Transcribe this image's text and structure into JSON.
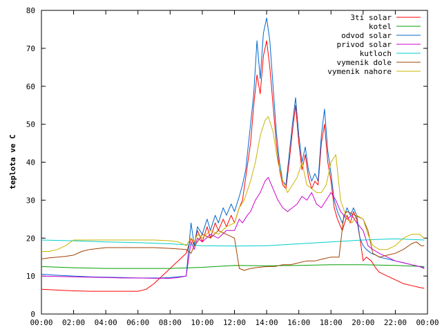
{
  "chart_data": {
    "type": "line",
    "title": "",
    "xlabel": "",
    "ylabel": "teplota ve C",
    "xlim": [
      0,
      24
    ],
    "ylim": [
      0,
      80
    ],
    "x_ticks": [
      {
        "value": 0,
        "label": "00:00"
      },
      {
        "value": 2,
        "label": "02:00"
      },
      {
        "value": 4,
        "label": "04:00"
      },
      {
        "value": 6,
        "label": "06:00"
      },
      {
        "value": 8,
        "label": "08:00"
      },
      {
        "value": 10,
        "label": "10:00"
      },
      {
        "value": 12,
        "label": "12:00"
      },
      {
        "value": 14,
        "label": "14:00"
      },
      {
        "value": 16,
        "label": "16:00"
      },
      {
        "value": 18,
        "label": "18:00"
      },
      {
        "value": 20,
        "label": "20:00"
      },
      {
        "value": 22,
        "label": "22:00"
      },
      {
        "value": 24,
        "label": "00:00"
      }
    ],
    "y_ticks": [
      {
        "value": 0,
        "label": "0"
      },
      {
        "value": 10,
        "label": "10"
      },
      {
        "value": 20,
        "label": "20"
      },
      {
        "value": 30,
        "label": "30"
      },
      {
        "value": 40,
        "label": "40"
      },
      {
        "value": 50,
        "label": "50"
      },
      {
        "value": 60,
        "label": "60"
      },
      {
        "value": 70,
        "label": "70"
      },
      {
        "value": 80,
        "label": "80"
      }
    ],
    "grid": false,
    "legend_position": "top-right",
    "series": [
      {
        "name": "3ti solar",
        "color": "#ff0000",
        "x": [
          0,
          1,
          2,
          3,
          4,
          5,
          6,
          6.5,
          7,
          7.5,
          8,
          8.5,
          9,
          9.3,
          9.5,
          9.7,
          10,
          10.3,
          10.5,
          10.8,
          11,
          11.3,
          11.5,
          11.8,
          12,
          12.3,
          12.5,
          12.7,
          13,
          13.2,
          13.4,
          13.6,
          13.8,
          14,
          14.2,
          14.4,
          14.6,
          14.8,
          15,
          15.2,
          15.4,
          15.6,
          15.8,
          16,
          16.2,
          16.4,
          16.6,
          16.8,
          17,
          17.2,
          17.4,
          17.6,
          17.8,
          18,
          18.2,
          18.4,
          18.7,
          19,
          19.2,
          19.4,
          19.6,
          19.8,
          20,
          20.2,
          20.5,
          20.8,
          21,
          21.5,
          22,
          22.5,
          23,
          23.5,
          23.8
        ],
        "y": [
          6.5,
          6.3,
          6.1,
          6.0,
          6.0,
          6.0,
          6.0,
          6.5,
          8,
          10,
          12,
          14,
          16,
          20,
          18,
          22,
          19,
          23,
          20,
          24,
          22,
          25,
          23,
          26,
          24,
          28,
          30,
          36,
          45,
          55,
          63,
          58,
          68,
          72,
          65,
          55,
          45,
          38,
          34,
          33,
          40,
          48,
          55,
          45,
          38,
          42,
          36,
          33,
          35,
          34,
          45,
          50,
          40,
          35,
          28,
          25,
          22,
          26,
          24,
          27,
          25,
          20,
          14,
          15,
          14,
          12,
          11,
          10,
          9,
          8,
          7.5,
          7,
          6.8
        ]
      },
      {
        "name": "kotel",
        "color": "#00a000",
        "x": [
          0,
          2,
          4,
          6,
          8,
          10,
          12,
          14,
          16,
          18,
          20,
          22,
          23.8
        ],
        "y": [
          12.5,
          12.2,
          12.0,
          12.0,
          12.0,
          12.3,
          12.8,
          12.7,
          12.8,
          13.0,
          13.0,
          12.8,
          12.5
        ]
      },
      {
        "name": "odvod solar",
        "color": "#0066cc",
        "x": [
          0,
          1,
          2,
          3,
          4,
          5,
          6,
          6.5,
          7,
          7.5,
          8,
          8.5,
          9,
          9.3,
          9.5,
          9.7,
          10,
          10.3,
          10.5,
          10.8,
          11,
          11.3,
          11.5,
          11.8,
          12,
          12.3,
          12.5,
          12.7,
          13,
          13.2,
          13.4,
          13.6,
          13.8,
          14,
          14.2,
          14.4,
          14.6,
          14.8,
          15,
          15.2,
          15.4,
          15.6,
          15.8,
          16,
          16.2,
          16.4,
          16.6,
          16.8,
          17,
          17.2,
          17.4,
          17.6,
          17.8,
          18,
          18.2,
          18.4,
          18.7,
          19,
          19.2,
          19.4,
          19.6,
          19.8,
          20,
          20.2,
          20.5,
          20.8,
          21,
          21.5,
          22,
          22.5,
          23,
          23.5,
          23.8
        ],
        "y": [
          10.5,
          10.2,
          10.0,
          9.8,
          9.7,
          9.6,
          9.5,
          9.5,
          9.5,
          9.5,
          9.6,
          9.8,
          10,
          24,
          18,
          23,
          21,
          25,
          22,
          26,
          24,
          28,
          26,
          29,
          27,
          31,
          34,
          38,
          50,
          58,
          72,
          62,
          74,
          78,
          72,
          60,
          48,
          40,
          35,
          34,
          42,
          50,
          57,
          47,
          40,
          44,
          38,
          35,
          37,
          35,
          47,
          54,
          43,
          37,
          30,
          27,
          24,
          28,
          26,
          28,
          26,
          20,
          18,
          17,
          16,
          15.5,
          15,
          14.5,
          14,
          13.5,
          13,
          12.5,
          12.2
        ]
      },
      {
        "name": "privod solar",
        "color": "#cc00cc",
        "x": [
          0,
          1,
          2,
          3,
          4,
          5,
          6,
          7,
          8,
          8.5,
          9,
          9.3,
          9.5,
          9.7,
          10,
          10.5,
          11,
          11.5,
          12,
          12.3,
          12.5,
          12.8,
          13,
          13.3,
          13.6,
          13.9,
          14.1,
          14.4,
          14.7,
          15,
          15.3,
          15.6,
          15.9,
          16.2,
          16.5,
          16.8,
          17.1,
          17.4,
          17.7,
          18,
          18.3,
          18.6,
          19,
          19.3,
          19.6,
          20,
          20.3,
          20.6,
          21,
          21.5,
          22,
          22.5,
          23,
          23.5,
          23.8
        ],
        "y": [
          10,
          9.9,
          9.8,
          9.7,
          9.6,
          9.5,
          9.5,
          9.4,
          9.4,
          9.6,
          10,
          19,
          17,
          20,
          19,
          21,
          20,
          22,
          22,
          25,
          24,
          26,
          27,
          30,
          32,
          35,
          36,
          33,
          30,
          28,
          27,
          28,
          29,
          31,
          30,
          32,
          29,
          28,
          30,
          32,
          30,
          27,
          25,
          26,
          24,
          22,
          18,
          17,
          16,
          15,
          14,
          13.5,
          13,
          12.5,
          12
        ]
      },
      {
        "name": "kutloch",
        "color": "#00cccc",
        "x": [
          0,
          2,
          4,
          6,
          8,
          10,
          12,
          14,
          16,
          18,
          20,
          22,
          23.8
        ],
        "y": [
          19.5,
          19.3,
          19.0,
          18.8,
          18.5,
          18.0,
          17.9,
          18.0,
          18.5,
          19.0,
          19.5,
          19.8,
          19.5
        ]
      },
      {
        "name": "vymenik dole",
        "color": "#a04000",
        "x": [
          0,
          0.5,
          1,
          1.5,
          2,
          2.5,
          3,
          4,
          5,
          6,
          7,
          8,
          9,
          9.3,
          9.5,
          9.7,
          10,
          10.5,
          11,
          11.5,
          12,
          12.3,
          12.6,
          13,
          13.5,
          14,
          14.5,
          15,
          15.5,
          16,
          16.5,
          17,
          17.5,
          18,
          18.3,
          18.5,
          18.8,
          19,
          19.5,
          20,
          20.3,
          20.6,
          21,
          21.5,
          22,
          22.5,
          23,
          23.3,
          23.6,
          23.8
        ],
        "y": [
          14.5,
          14.8,
          15,
          15.2,
          15.5,
          16.5,
          17,
          17.5,
          17.5,
          17.5,
          17.5,
          17.3,
          17,
          16,
          18,
          19,
          21,
          20,
          22,
          21,
          20,
          12,
          11.5,
          12,
          12.3,
          12.5,
          12.5,
          13,
          13,
          13.5,
          14,
          14,
          14.5,
          15,
          15,
          15,
          26,
          27,
          26,
          25,
          22,
          16,
          15,
          15.5,
          16,
          17,
          18.5,
          19,
          18,
          18
        ]
      },
      {
        "name": "vymenik nahore",
        "color": "#c8b400",
        "x": [
          0,
          0.5,
          1,
          1.5,
          2,
          3,
          4,
          5,
          6,
          7,
          8,
          8.5,
          9,
          9.3,
          9.5,
          9.7,
          10,
          10.5,
          11,
          11.5,
          12,
          12.3,
          12.6,
          13,
          13.3,
          13.6,
          13.9,
          14.1,
          14.4,
          14.7,
          15,
          15.3,
          15.6,
          15.9,
          16.2,
          16.5,
          16.8,
          17.1,
          17.4,
          17.7,
          18,
          18.3,
          18.6,
          19,
          19.3,
          19.6,
          20,
          20.3,
          20.6,
          21,
          21.5,
          22,
          22.5,
          23,
          23.5,
          23.8
        ],
        "y": [
          16.5,
          16.5,
          17,
          18,
          19.5,
          19.5,
          19.5,
          19.5,
          19.5,
          19.5,
          19.3,
          19,
          18,
          20,
          19,
          21,
          20,
          22,
          21,
          23,
          24,
          28,
          30,
          35,
          40,
          47,
          51,
          52,
          48,
          40,
          35,
          32,
          34,
          36,
          40,
          34,
          33,
          32,
          32,
          34,
          40,
          42,
          30,
          25,
          24,
          26,
          25,
          21,
          18,
          17,
          17,
          18,
          20,
          21,
          21,
          20
        ]
      }
    ]
  }
}
